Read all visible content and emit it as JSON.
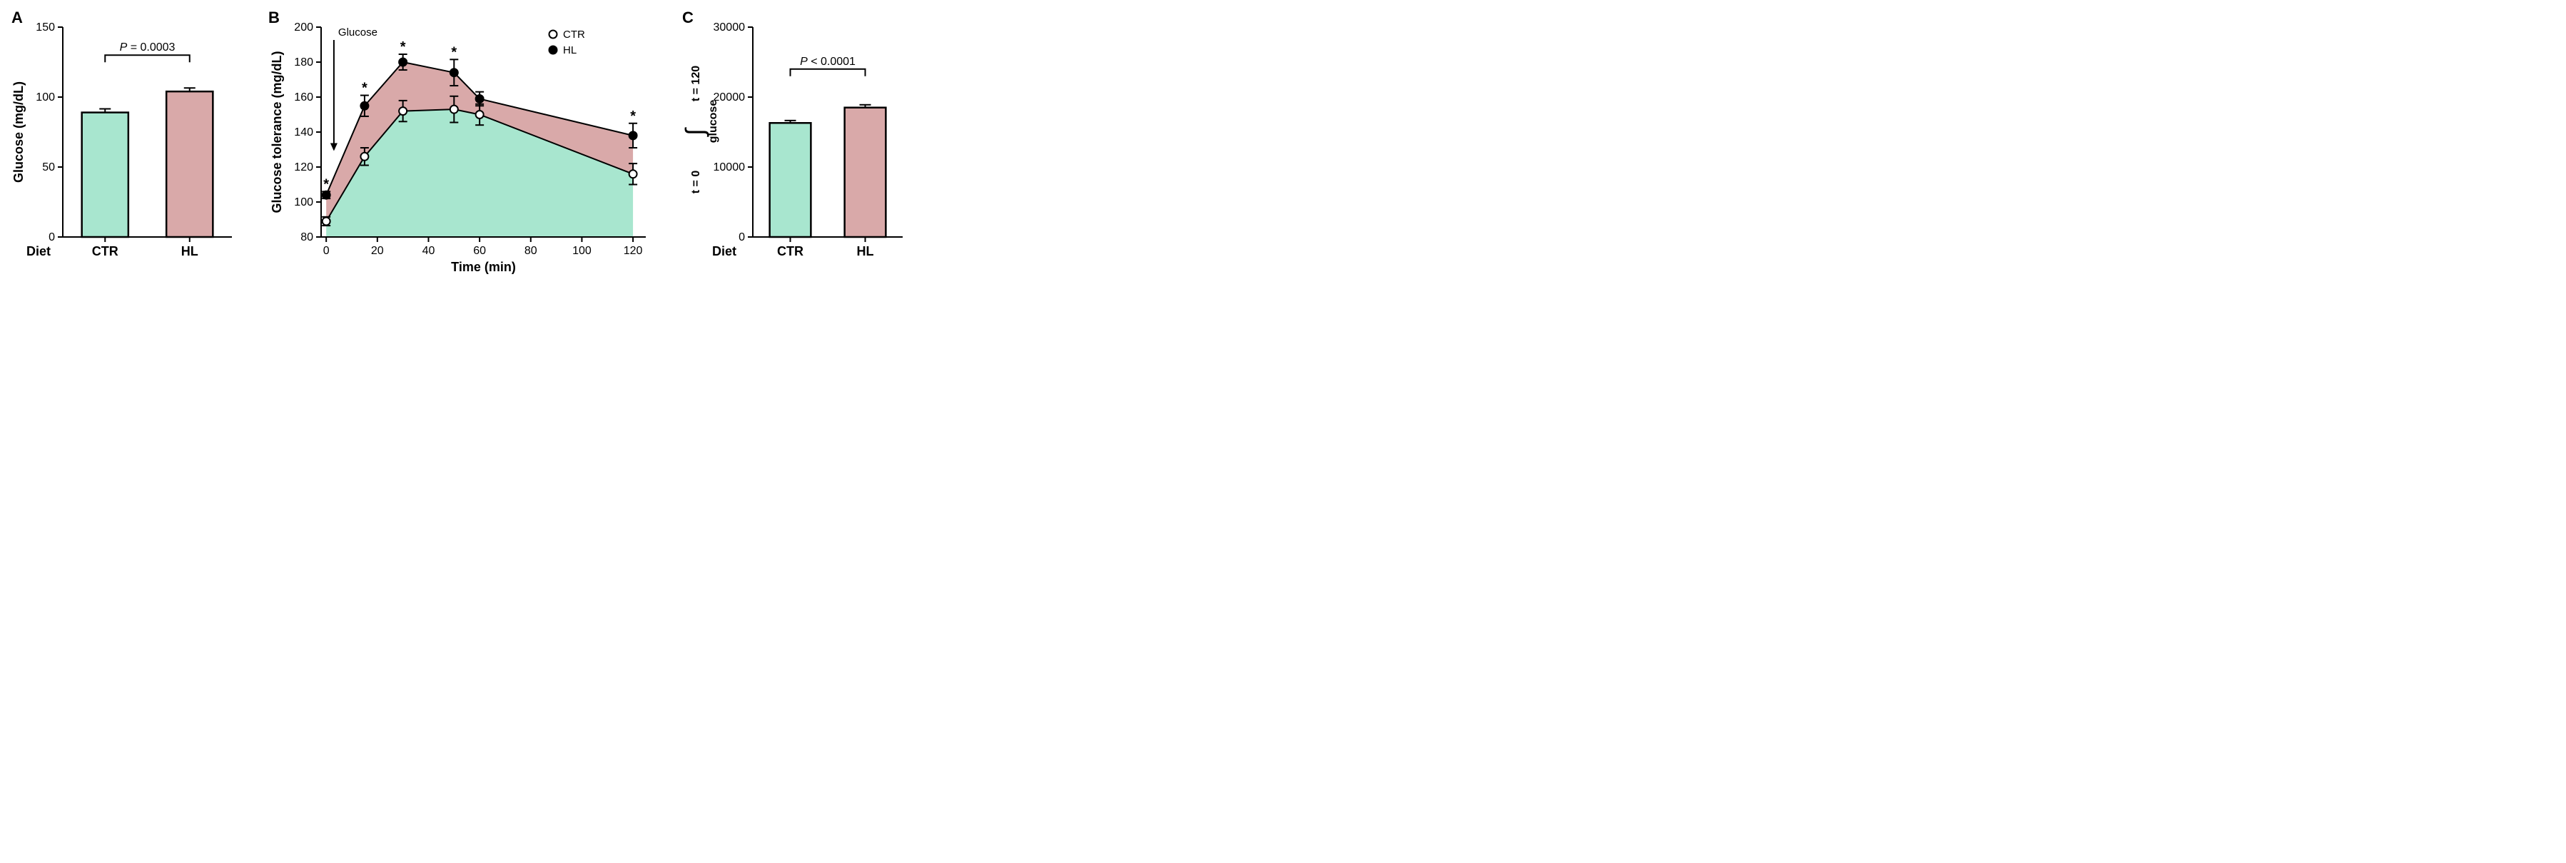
{
  "colors": {
    "ctr_fill": "#a8e6cf",
    "hl_fill": "#d9a9a9",
    "bg": "#ffffff",
    "axis": "#000000"
  },
  "panelA": {
    "label": "A",
    "label_fontsize": 22,
    "ylabel": "Glucose (mg/dL)",
    "xlabel": "Diet",
    "categories": [
      "CTR",
      "HL"
    ],
    "values": [
      89,
      104
    ],
    "errors": [
      2.6,
      2.5
    ],
    "bar_colors": [
      "#a8e6cf",
      "#d9a9a9"
    ],
    "ylim": [
      0,
      150
    ],
    "yticks": [
      0,
      50,
      100,
      150
    ],
    "pvalue_text": "P = 0.0003",
    "axis_label_fontsize": 18,
    "tick_fontsize": 16,
    "category_fontsize": 18,
    "pval_fontsize": 16,
    "bar_width": 0.55
  },
  "panelB": {
    "label": "B",
    "label_fontsize": 22,
    "ylabel": "Glucose tolerance (mg/dL)",
    "xlabel": "Time (min)",
    "xlim": [
      -2,
      125
    ],
    "xticks": [
      0,
      20,
      40,
      60,
      80,
      100,
      120
    ],
    "ylim": [
      80,
      200
    ],
    "yticks": [
      80,
      100,
      120,
      140,
      160,
      180,
      200
    ],
    "axis_label_fontsize": 18,
    "tick_fontsize": 16,
    "marker_radius": 5.5,
    "glucose_label": "Glucose",
    "legend": [
      "CTR",
      "HL"
    ],
    "ctr": {
      "x": [
        0,
        15,
        30,
        50,
        60,
        120
      ],
      "y": [
        89,
        126,
        152,
        153,
        150,
        116
      ],
      "err": [
        2.5,
        5,
        6,
        7.5,
        6,
        6
      ],
      "color": "#a8e6cf",
      "marker_fill": "#ffffff",
      "marker_stroke": "#000000"
    },
    "hl": {
      "x": [
        0,
        15,
        30,
        50,
        60,
        120
      ],
      "y": [
        104,
        155,
        180,
        174,
        159,
        138
      ],
      "err": [
        2,
        6,
        4.5,
        7.5,
        4,
        7
      ],
      "color": "#d9a9a9",
      "marker_fill": "#000000",
      "marker_stroke": "#000000"
    },
    "stars_x": [
      0,
      15,
      30,
      50,
      120
    ],
    "star_fontsize": 20
  },
  "panelC": {
    "label": "C",
    "label_fontsize": 22,
    "xlabel": "Diet",
    "categories": [
      "CTR",
      "HL"
    ],
    "values": [
      16300,
      18500
    ],
    "errors": [
      350,
      400
    ],
    "bar_colors": [
      "#a8e6cf",
      "#d9a9a9"
    ],
    "ylim": [
      0,
      30000
    ],
    "yticks": [
      0,
      10000,
      20000,
      30000
    ],
    "pvalue_text": "P < 0.0001",
    "axis_label_fontsize": 18,
    "tick_fontsize": 16,
    "category_fontsize": 18,
    "pval_fontsize": 16,
    "bar_width": 0.55,
    "ylabel_parts": {
      "integral": "∫",
      "upper": "t = 120",
      "lower": "t = 0",
      "sub": "glucose"
    }
  }
}
